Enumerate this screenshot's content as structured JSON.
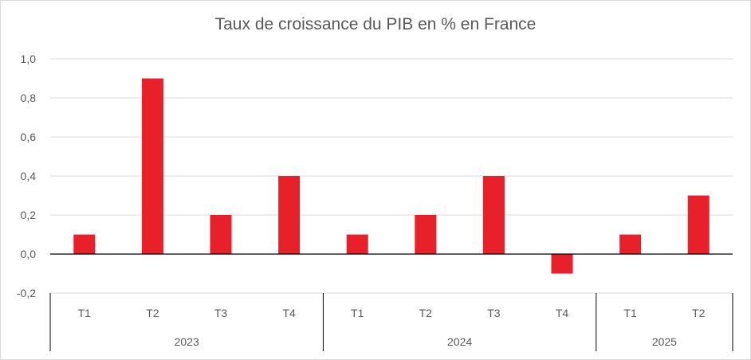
{
  "chart_data": {
    "type": "bar",
    "title": "Taux de croissance du PIB en % en France",
    "xlabel": "",
    "ylabel": "",
    "ylim": [
      -0.2,
      1.0
    ],
    "yticks": [
      "1,0",
      "0,8",
      "0,6",
      "0,4",
      "0,2",
      "0,0",
      "-0,2"
    ],
    "ytick_values": [
      1.0,
      0.8,
      0.6,
      0.4,
      0.2,
      0.0,
      -0.2
    ],
    "categories": [
      "T1",
      "T2",
      "T3",
      "T4",
      "T1",
      "T2",
      "T3",
      "T4",
      "T1",
      "T2"
    ],
    "groups": [
      {
        "label": "2023",
        "count": 4
      },
      {
        "label": "2024",
        "count": 4
      },
      {
        "label": "2025",
        "count": 2
      }
    ],
    "values": [
      0.1,
      0.9,
      0.2,
      0.4,
      0.1,
      0.2,
      0.4,
      -0.1,
      0.1,
      0.3
    ],
    "grid": true,
    "legend": "none",
    "colors": {
      "bar": "#e8202a",
      "grid": "#d9d9d9",
      "axis": "#000000",
      "text": "#595959"
    }
  }
}
